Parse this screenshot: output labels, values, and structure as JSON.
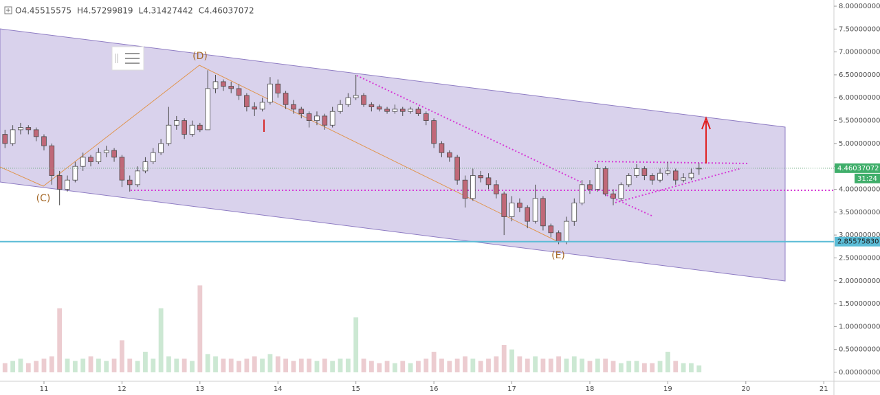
{
  "chart_data": {
    "type": "candlestick",
    "ohlc_legend": [
      "O4.45515575",
      "H4.57299819",
      "L4.31427442",
      "C4.46037072"
    ],
    "x": [
      10.5,
      10.6,
      10.7,
      10.8,
      10.9,
      11.0,
      11.1,
      11.2,
      11.3,
      11.4,
      11.5,
      11.6,
      11.7,
      11.8,
      11.9,
      12.0,
      12.1,
      12.2,
      12.3,
      12.4,
      12.5,
      12.6,
      12.7,
      12.8,
      12.9,
      13.0,
      13.1,
      13.2,
      13.3,
      13.4,
      13.5,
      13.6,
      13.7,
      13.8,
      13.9,
      14.0,
      14.1,
      14.2,
      14.3,
      14.4,
      14.5,
      14.6,
      14.7,
      14.8,
      14.9,
      15.0,
      15.1,
      15.2,
      15.3,
      15.4,
      15.5,
      15.6,
      15.7,
      15.8,
      15.9,
      16.0,
      16.1,
      16.2,
      16.3,
      16.4,
      16.5,
      16.6,
      16.7,
      16.8,
      16.9,
      17.0,
      17.1,
      17.2,
      17.3,
      17.4,
      17.5,
      17.6,
      17.7,
      17.8,
      17.9,
      18.0,
      18.1,
      18.2,
      18.3,
      18.4,
      18.5,
      18.6,
      18.7,
      18.8,
      18.9,
      19.0,
      19.1,
      19.2,
      19.3,
      19.4
    ],
    "open": [
      5.2,
      5.0,
      5.3,
      5.35,
      5.3,
      5.15,
      4.95,
      4.3,
      4.0,
      4.2,
      4.5,
      4.7,
      4.6,
      4.8,
      4.85,
      4.7,
      4.2,
      4.1,
      4.4,
      4.6,
      4.8,
      5.0,
      5.4,
      5.5,
      5.2,
      5.4,
      5.3,
      6.2,
      6.35,
      6.25,
      6.2,
      6.05,
      5.8,
      5.75,
      5.9,
      6.3,
      6.1,
      5.85,
      5.75,
      5.65,
      5.5,
      5.6,
      5.4,
      5.7,
      5.85,
      6.0,
      6.05,
      5.85,
      5.8,
      5.75,
      5.7,
      5.75,
      5.7,
      5.75,
      5.65,
      5.5,
      5.0,
      4.8,
      4.7,
      4.2,
      3.8,
      4.3,
      4.25,
      4.1,
      3.9,
      3.4,
      3.7,
      3.6,
      3.3,
      3.8,
      3.2,
      3.05,
      2.85,
      3.3,
      3.7,
      4.1,
      4.0,
      4.45,
      3.9,
      3.8,
      4.1,
      4.3,
      4.45,
      4.3,
      4.2,
      4.35,
      4.4,
      4.2,
      4.25,
      4.45515575
    ],
    "high": [
      5.3,
      5.4,
      5.45,
      5.4,
      5.35,
      5.2,
      5.0,
      4.4,
      4.3,
      4.6,
      4.8,
      4.75,
      4.9,
      4.95,
      4.9,
      4.75,
      4.3,
      4.5,
      4.7,
      4.9,
      5.1,
      5.8,
      5.6,
      5.55,
      5.5,
      5.45,
      6.6,
      6.5,
      6.4,
      6.35,
      6.3,
      6.1,
      5.9,
      6.0,
      6.45,
      6.4,
      6.15,
      5.95,
      5.8,
      5.7,
      5.7,
      5.65,
      5.8,
      5.95,
      6.1,
      6.5,
      6.1,
      5.9,
      5.85,
      5.8,
      5.85,
      5.8,
      5.8,
      5.8,
      5.7,
      5.55,
      5.05,
      4.85,
      4.75,
      4.3,
      4.45,
      4.4,
      4.35,
      4.2,
      3.95,
      3.85,
      3.8,
      3.65,
      4.1,
      3.85,
      3.25,
      3.1,
      3.4,
      3.8,
      4.2,
      4.2,
      4.55,
      4.5,
      4.0,
      4.15,
      4.35,
      4.55,
      4.5,
      4.35,
      4.45,
      4.6,
      4.45,
      4.35,
      4.45,
      4.57299819
    ],
    "low": [
      4.9,
      4.95,
      5.2,
      5.2,
      5.05,
      4.85,
      4.1,
      3.65,
      3.95,
      4.15,
      4.4,
      4.5,
      4.55,
      4.7,
      4.6,
      4.05,
      3.95,
      4.05,
      4.35,
      4.55,
      4.75,
      4.95,
      5.3,
      5.1,
      5.15,
      5.25,
      5.3,
      6.1,
      6.15,
      6.1,
      5.95,
      5.7,
      5.6,
      5.7,
      5.85,
      6.0,
      5.75,
      5.65,
      5.55,
      5.35,
      5.4,
      5.3,
      5.35,
      5.65,
      5.8,
      5.95,
      5.8,
      5.7,
      5.7,
      5.65,
      5.65,
      5.6,
      5.65,
      5.6,
      5.4,
      4.9,
      4.7,
      4.6,
      4.1,
      3.6,
      3.75,
      4.15,
      4.0,
      3.8,
      3.0,
      3.3,
      3.5,
      3.15,
      3.25,
      3.1,
      2.95,
      2.8,
      2.8,
      3.2,
      3.65,
      3.9,
      3.95,
      3.85,
      3.65,
      3.75,
      4.05,
      4.25,
      4.2,
      4.1,
      4.15,
      4.3,
      4.1,
      4.15,
      4.2,
      4.31427442
    ],
    "close": [
      5.0,
      5.3,
      5.35,
      5.3,
      5.15,
      4.95,
      4.3,
      4.0,
      4.2,
      4.5,
      4.7,
      4.6,
      4.8,
      4.85,
      4.7,
      4.2,
      4.1,
      4.4,
      4.6,
      4.8,
      5.0,
      5.4,
      5.5,
      5.2,
      5.4,
      5.3,
      6.2,
      6.35,
      6.25,
      6.2,
      6.05,
      5.8,
      5.75,
      5.9,
      6.3,
      6.1,
      5.85,
      5.75,
      5.65,
      5.5,
      5.6,
      5.4,
      5.7,
      5.85,
      6.0,
      6.05,
      5.85,
      5.8,
      5.75,
      5.7,
      5.75,
      5.7,
      5.75,
      5.65,
      5.5,
      5.0,
      4.8,
      4.7,
      4.2,
      3.8,
      4.3,
      4.25,
      4.1,
      3.9,
      3.4,
      3.7,
      3.6,
      3.3,
      3.8,
      3.2,
      3.05,
      2.85,
      3.3,
      3.7,
      4.1,
      4.0,
      4.45,
      3.9,
      3.8,
      4.1,
      4.3,
      4.45,
      4.3,
      4.2,
      4.35,
      4.4,
      4.2,
      4.25,
      4.35,
      4.46037072
    ],
    "volume": [
      0.2,
      0.25,
      0.3,
      0.2,
      0.25,
      0.3,
      0.35,
      1.4,
      0.3,
      0.25,
      0.3,
      0.35,
      0.3,
      0.25,
      0.3,
      0.7,
      0.3,
      0.25,
      0.45,
      0.3,
      1.4,
      0.35,
      0.3,
      0.3,
      0.25,
      1.9,
      0.4,
      0.35,
      0.3,
      0.3,
      0.25,
      0.3,
      0.35,
      0.3,
      0.4,
      0.35,
      0.3,
      0.25,
      0.3,
      0.3,
      0.25,
      0.3,
      0.25,
      0.3,
      0.3,
      1.2,
      0.3,
      0.25,
      0.2,
      0.25,
      0.2,
      0.25,
      0.2,
      0.25,
      0.3,
      0.45,
      0.3,
      0.25,
      0.3,
      0.35,
      0.3,
      0.25,
      0.3,
      0.35,
      0.6,
      0.5,
      0.35,
      0.3,
      0.35,
      0.3,
      0.3,
      0.35,
      0.3,
      0.35,
      0.3,
      0.25,
      0.3,
      0.3,
      0.25,
      0.2,
      0.25,
      0.25,
      0.2,
      0.2,
      0.25,
      0.45,
      0.25,
      0.2,
      0.2,
      0.15
    ],
    "up_color": "#ffffff",
    "down_color": "#c06878",
    "wick_color": "#4a4a4a",
    "xlim": [
      10.436,
      21.13
    ],
    "xticks": [
      11,
      12,
      13,
      14,
      15,
      16,
      17,
      18,
      19,
      20,
      21
    ],
    "ylim": [
      -0.195,
      8.135
    ],
    "yticks": [
      {
        "value": 0,
        "label": "0.00000000"
      },
      {
        "value": 0.5,
        "label": "0.50000000"
      },
      {
        "value": 1,
        "label": "1.00000000"
      },
      {
        "value": 1.5,
        "label": "1.50000000"
      },
      {
        "value": 2,
        "label": "2.00000000"
      },
      {
        "value": 2.5,
        "label": "2.50000000"
      },
      {
        "value": 3,
        "label": "3.00000000"
      },
      {
        "value": 3.5,
        "label": "3.50000000"
      },
      {
        "value": 4,
        "label": "4.00000000"
      },
      {
        "value": 4.5,
        "label": "4.50000000"
      },
      {
        "value": 5,
        "label": "5.00000000"
      },
      {
        "value": 5.5,
        "label": "5.50000000"
      },
      {
        "value": 6,
        "label": "6.00000000"
      },
      {
        "value": 6.5,
        "label": "6.50000000"
      },
      {
        "value": 7,
        "label": "7.00000000"
      },
      {
        "value": 7.5,
        "label": "7.50000000"
      },
      {
        "value": 8,
        "label": "8.00000000"
      }
    ],
    "hline": {
      "value": 2.8557583,
      "label": "2.85575830",
      "color": "#5bbcd6"
    },
    "last_price_color": "#3fae6a",
    "countdown": "31:24",
    "annotations": [
      "(C)",
      "(D)",
      "(E)"
    ]
  }
}
